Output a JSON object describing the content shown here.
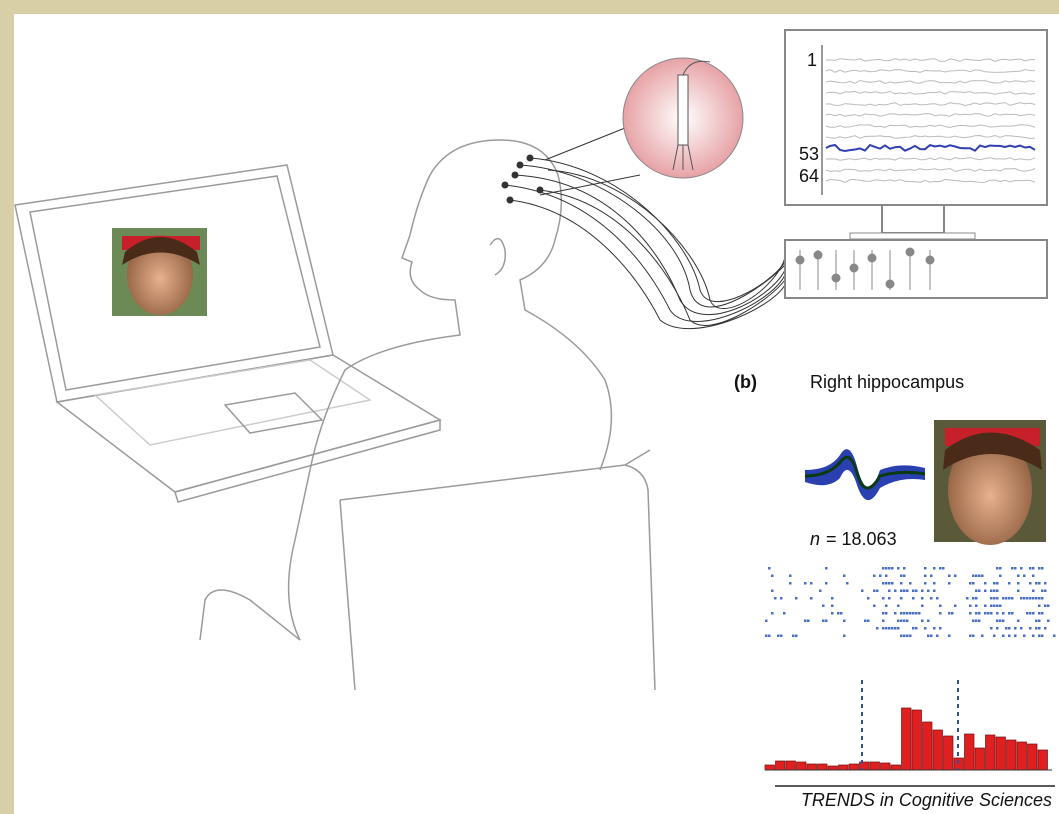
{
  "monitor": {
    "channel_labels": [
      "1",
      "53",
      "64"
    ]
  },
  "panel_b": {
    "label": "(b)",
    "title": "Right hippocampus",
    "spike_count": {
      "symbol": "n",
      "text": "= 18.063"
    }
  },
  "footer": {
    "credit": "TRENDS in Cognitive Sciences"
  }
}
